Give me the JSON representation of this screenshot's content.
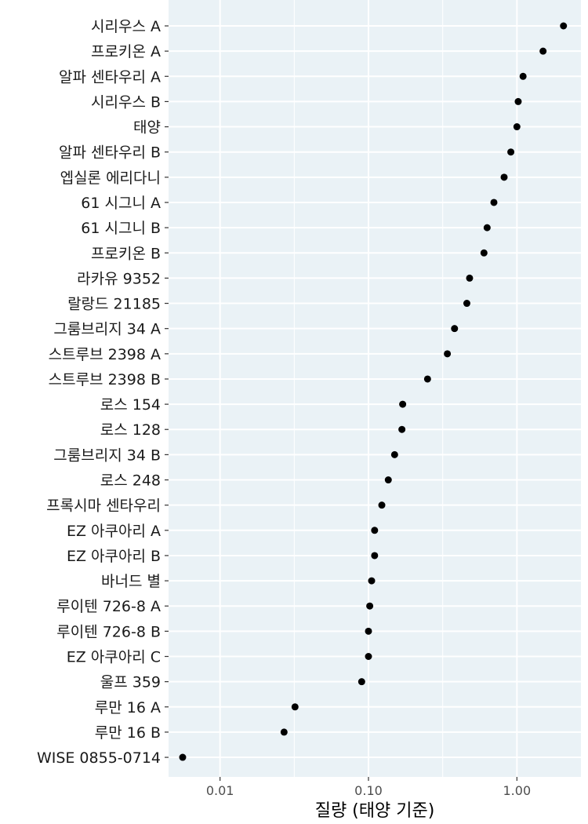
{
  "chart_data": {
    "type": "scatter",
    "title": "",
    "xlabel": "질량 (태양 기준)",
    "ylabel": "",
    "x_scale": "log",
    "xlim": [
      0.0045,
      2.7
    ],
    "x_ticks": [
      0.01,
      0.1,
      1.0
    ],
    "x_tick_labels": [
      "0.01",
      "0.10",
      "1.00"
    ],
    "grid": true,
    "legend": "none",
    "categories": [
      "시리우스 A",
      "프로키온 A",
      "알파 센타우리 A",
      "시리우스 B",
      "태양",
      "알파 센타우리 B",
      "엡실론 에리다니",
      "61 시그니 A",
      "61 시그니 B",
      "프로키온 B",
      "라카유 9352",
      "랄랑드 21185",
      "그룸브리지 34 A",
      "스트루브 2398 A",
      "스트루브 2398 B",
      "로스 154",
      "로스 128",
      "그룸브리지 34 B",
      "로스 248",
      "프록시마 센타우리",
      "EZ 아쿠아리 A",
      "EZ 아쿠아리 B",
      "바너드 별",
      "루이텐 726-8 A",
      "루이텐 726-8 B",
      "EZ 아쿠아리 C",
      "울프 359",
      "루만 16 A",
      "루만 16 B",
      "WISE 0855-0714"
    ],
    "values": [
      2.06,
      1.5,
      1.1,
      1.02,
      1.0,
      0.91,
      0.82,
      0.7,
      0.63,
      0.6,
      0.48,
      0.46,
      0.38,
      0.34,
      0.25,
      0.17,
      0.168,
      0.15,
      0.136,
      0.123,
      0.11,
      0.11,
      0.105,
      0.102,
      0.1,
      0.1,
      0.09,
      0.032,
      0.027,
      0.0056
    ],
    "colors": {
      "panel": "#EAF2F6",
      "grid": "#ffffff",
      "point": "#000000",
      "tick": "#4d4d4d"
    }
  }
}
